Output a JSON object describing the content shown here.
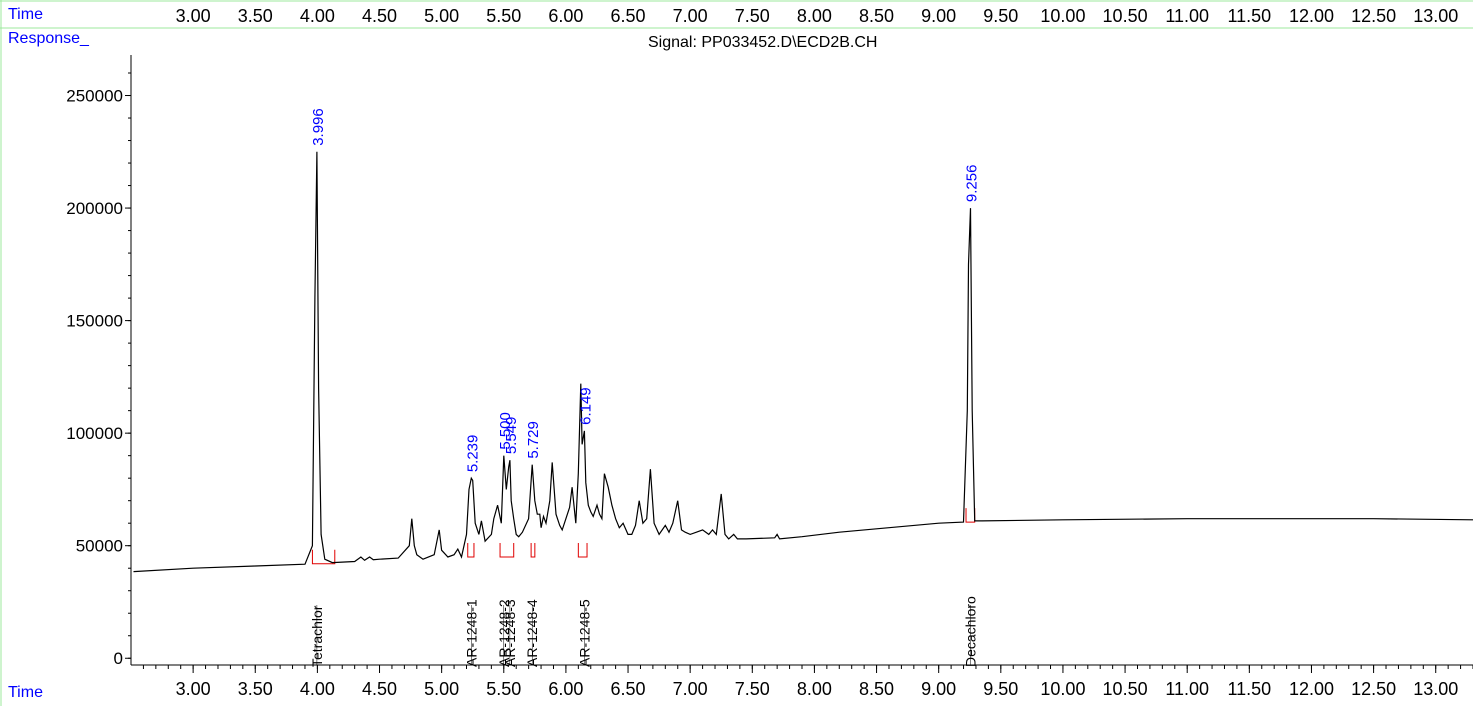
{
  "header": {
    "time_label": "Time",
    "response_label": "Response_",
    "signal_title": "Signal: PP033452.D\\ECD2B.CH"
  },
  "footer": {
    "time_label": "Time"
  },
  "colors": {
    "axis_label": "#0000ff",
    "trace": "#000000",
    "peak_label": "#0000ff",
    "baseline_mark": "#e00000",
    "frame": "#9ce89c"
  },
  "chart_data": {
    "type": "line",
    "title": "Signal: PP033452.D\\ECD2B.CH",
    "xlabel": "Time",
    "ylabel": "Response_",
    "xlim": [
      2.5,
      13.3
    ],
    "ylim": [
      -3000,
      268000
    ],
    "x_ticks": [
      "3.00",
      "3.50",
      "4.00",
      "4.50",
      "5.00",
      "5.50",
      "6.00",
      "6.50",
      "7.00",
      "7.50",
      "8.00",
      "8.50",
      "9.00",
      "9.50",
      "10.00",
      "10.50",
      "11.00",
      "11.50",
      "12.00",
      "12.50",
      "13.00"
    ],
    "y_ticks": [
      0,
      50000,
      100000,
      150000,
      200000,
      250000
    ],
    "y_tick_labels": [
      "0",
      "50000",
      "100000",
      "150000",
      "200000",
      "250000"
    ],
    "series": [
      {
        "x": [
          2.52,
          3.0,
          3.5,
          3.9,
          3.96,
          3.98,
          3.996,
          4.01,
          4.03,
          4.06,
          4.12,
          4.3,
          4.35,
          4.38,
          4.42,
          4.45,
          4.5,
          4.65,
          4.74,
          4.76,
          4.78,
          4.8,
          4.85,
          4.94,
          4.98,
          5.0,
          5.05,
          5.1,
          5.13,
          5.16,
          5.2,
          5.22,
          5.239,
          5.25,
          5.27,
          5.3,
          5.32,
          5.35,
          5.4,
          5.42,
          5.45,
          5.48,
          5.5,
          5.52,
          5.54,
          5.549,
          5.56,
          5.58,
          5.6,
          5.62,
          5.65,
          5.7,
          5.729,
          5.75,
          5.77,
          5.79,
          5.8,
          5.82,
          5.84,
          5.87,
          5.89,
          5.92,
          5.95,
          5.97,
          6.0,
          6.03,
          6.05,
          6.08,
          6.1,
          6.12,
          6.13,
          6.149,
          6.16,
          6.18,
          6.2,
          6.22,
          6.25,
          6.27,
          6.29,
          6.31,
          6.34,
          6.37,
          6.4,
          6.43,
          6.46,
          6.5,
          6.53,
          6.56,
          6.59,
          6.62,
          6.65,
          6.68,
          6.71,
          6.75,
          6.8,
          6.83,
          6.86,
          6.9,
          6.93,
          6.96,
          7.0,
          7.05,
          7.1,
          7.15,
          7.18,
          7.21,
          7.25,
          7.28,
          7.31,
          7.35,
          7.38,
          7.45,
          7.68,
          7.7,
          7.72,
          7.9,
          8.2,
          8.6,
          9.0,
          9.2,
          9.23,
          9.24,
          9.256,
          9.27,
          9.29,
          9.35,
          10.0,
          11.0,
          12.0,
          12.5,
          13.3
        ],
        "y": [
          38500,
          40000,
          41000,
          41800,
          50000,
          160000,
          225000,
          120000,
          55000,
          44000,
          42500,
          43000,
          45000,
          43500,
          45000,
          43800,
          44000,
          44500,
          50000,
          62000,
          50000,
          46000,
          44000,
          46000,
          57000,
          48000,
          45000,
          46000,
          48500,
          45000,
          55000,
          75000,
          80000,
          79000,
          60000,
          55000,
          61000,
          52000,
          55000,
          62000,
          68000,
          60000,
          90000,
          75000,
          85000,
          88000,
          70000,
          62000,
          55000,
          54000,
          56000,
          62000,
          86000,
          70000,
          64000,
          64000,
          58000,
          63000,
          60000,
          70000,
          87000,
          64000,
          59000,
          57000,
          62000,
          67000,
          76000,
          60000,
          82000,
          122000,
          95000,
          101000,
          78000,
          68000,
          65000,
          63000,
          68000,
          64000,
          62000,
          82000,
          76000,
          68000,
          62000,
          58000,
          60000,
          55000,
          55000,
          59000,
          70000,
          60000,
          62000,
          84000,
          60000,
          55000,
          59000,
          56000,
          60000,
          70000,
          57000,
          56000,
          55000,
          56000,
          57000,
          55000,
          57000,
          55000,
          73000,
          55000,
          53000,
          55000,
          53000,
          53000,
          53500,
          55000,
          53000,
          54000,
          56000,
          58000,
          60000,
          60500,
          110000,
          175000,
          200000,
          110000,
          61000,
          61000,
          61500,
          62000,
          62000,
          62000,
          61500
        ]
      }
    ],
    "peak_labels": [
      {
        "x": 3.996,
        "y": 225000,
        "label": "3.996"
      },
      {
        "x": 5.239,
        "y": 80000,
        "label": "5.239"
      },
      {
        "x": 5.5,
        "y": 90000,
        "label": "5.500"
      },
      {
        "x": 5.549,
        "y": 88000,
        "label": "5.549"
      },
      {
        "x": 5.729,
        "y": 86000,
        "label": "5.729"
      },
      {
        "x": 6.149,
        "y": 101000,
        "label": "6.149"
      },
      {
        "x": 9.256,
        "y": 200000,
        "label": "9.256"
      }
    ],
    "compound_labels": [
      {
        "x": 3.996,
        "label": "Tetrachlor"
      },
      {
        "x": 5.239,
        "label": "AR-1248-1"
      },
      {
        "x": 5.5,
        "label": "AR-1248-2"
      },
      {
        "x": 5.549,
        "label": "AR-1248-3"
      },
      {
        "x": 5.729,
        "label": "AR-1248-4"
      },
      {
        "x": 6.149,
        "label": "AR-1248-5"
      },
      {
        "x": 9.256,
        "label": "Decachloro"
      }
    ],
    "integration_marks": [
      {
        "x1": 3.96,
        "x2": 4.14,
        "y": 42000
      },
      {
        "x1": 5.21,
        "x2": 5.26,
        "y": 45000
      },
      {
        "x1": 5.47,
        "x2": 5.58,
        "y": 45000
      },
      {
        "x1": 5.72,
        "x2": 5.75,
        "y": 45000
      },
      {
        "x1": 6.1,
        "x2": 6.17,
        "y": 45000
      },
      {
        "x1": 9.22,
        "x2": 9.29,
        "y": 60500
      }
    ]
  }
}
